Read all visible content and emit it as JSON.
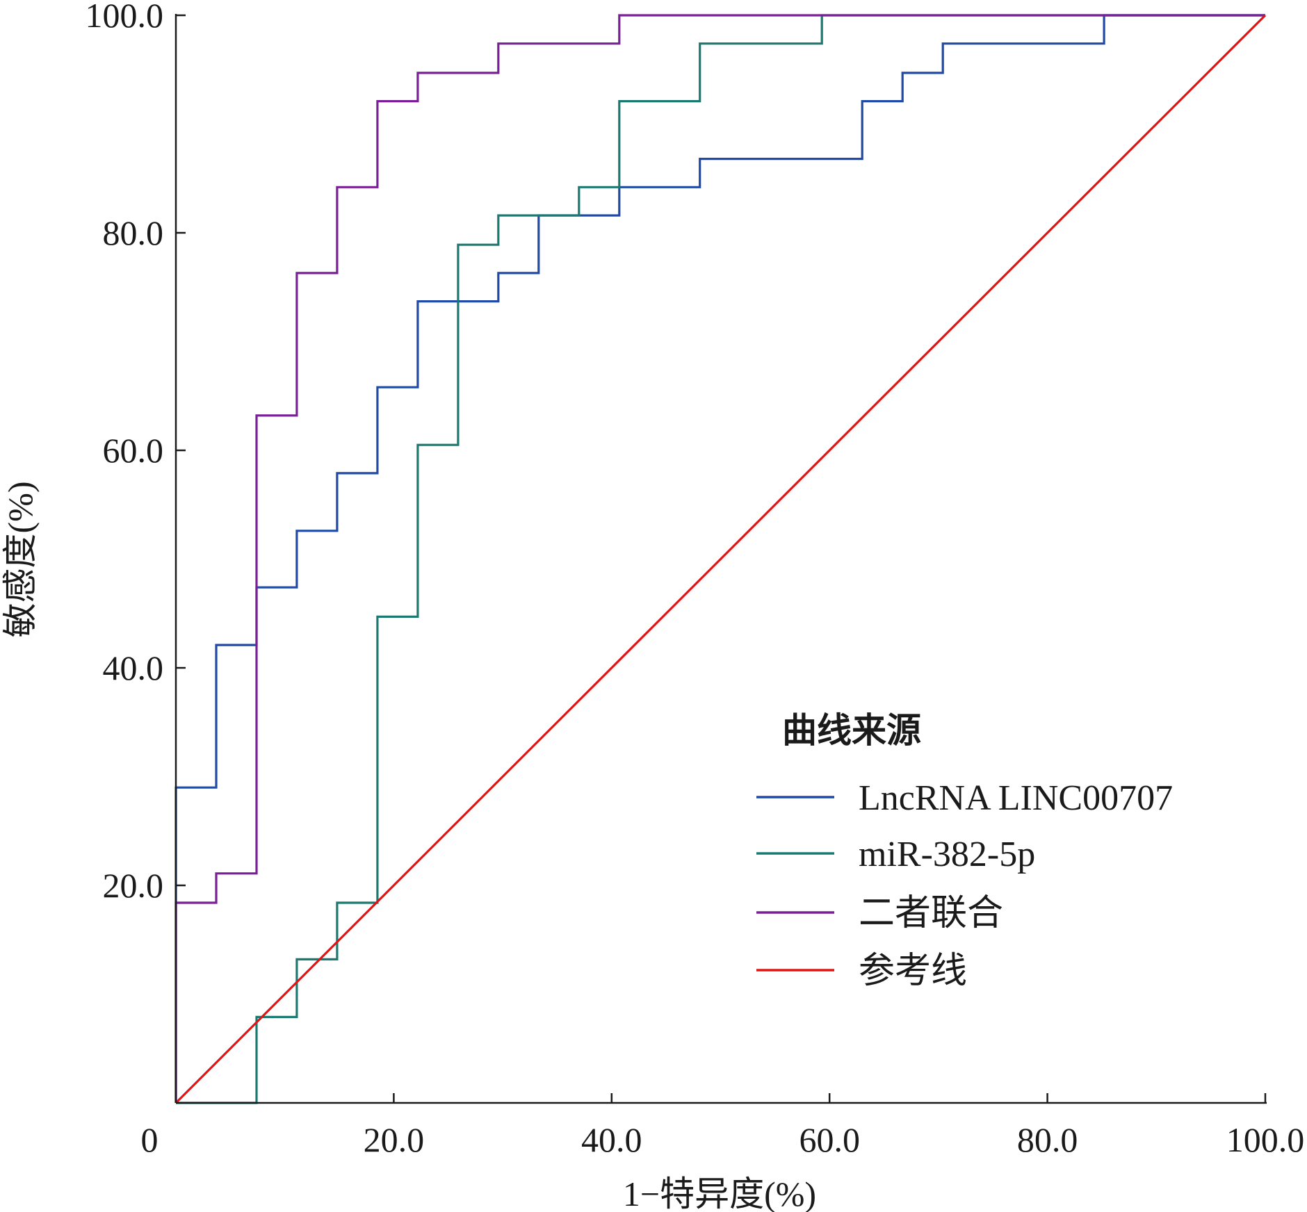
{
  "chart_data": {
    "type": "line",
    "xlabel": "1−特异度(%)",
    "ylabel": "敏感度(%)",
    "xlim": [
      0,
      100
    ],
    "ylim": [
      0,
      100
    ],
    "x_ticks": [
      0,
      20,
      40,
      60,
      80,
      100
    ],
    "x_tick_labels": [
      "0",
      "20.0",
      "40.0",
      "60.0",
      "80.0",
      "100.0"
    ],
    "y_ticks": [
      20,
      40,
      60,
      80,
      100
    ],
    "y_tick_labels": [
      "20.0",
      "40.0",
      "60.0",
      "80.0",
      "100.0"
    ],
    "legend": {
      "title": "曲线来源",
      "position": "lower-right"
    },
    "series": [
      {
        "name": "LncRNA LINC00707",
        "color": "#1f4aa8",
        "step": true,
        "points": [
          [
            0,
            0
          ],
          [
            0,
            29
          ],
          [
            3.7,
            29
          ],
          [
            3.7,
            42.1
          ],
          [
            7.4,
            42.1
          ],
          [
            7.4,
            47.4
          ],
          [
            11.1,
            47.4
          ],
          [
            11.1,
            52.6
          ],
          [
            14.8,
            52.6
          ],
          [
            14.8,
            57.9
          ],
          [
            18.5,
            57.9
          ],
          [
            18.5,
            65.8
          ],
          [
            22.2,
            65.8
          ],
          [
            22.2,
            73.7
          ],
          [
            29.6,
            73.7
          ],
          [
            29.6,
            76.3
          ],
          [
            33.3,
            76.3
          ],
          [
            33.3,
            81.6
          ],
          [
            40.7,
            81.6
          ],
          [
            40.7,
            84.2
          ],
          [
            48.1,
            84.2
          ],
          [
            48.1,
            86.8
          ],
          [
            63,
            86.8
          ],
          [
            63,
            92.1
          ],
          [
            66.7,
            92.1
          ],
          [
            66.7,
            94.7
          ],
          [
            70.4,
            94.7
          ],
          [
            70.4,
            97.4
          ],
          [
            85.2,
            97.4
          ],
          [
            85.2,
            100
          ],
          [
            100,
            100
          ]
        ]
      },
      {
        "name": "miR-382-5p",
        "color": "#1a7a72",
        "step": true,
        "points": [
          [
            0,
            0
          ],
          [
            7.4,
            0
          ],
          [
            7.4,
            7.9
          ],
          [
            11.1,
            7.9
          ],
          [
            11.1,
            13.2
          ],
          [
            14.8,
            13.2
          ],
          [
            14.8,
            18.4
          ],
          [
            18.5,
            18.4
          ],
          [
            18.5,
            44.7
          ],
          [
            22.2,
            44.7
          ],
          [
            22.2,
            60.5
          ],
          [
            25.9,
            60.5
          ],
          [
            25.9,
            78.9
          ],
          [
            29.6,
            78.9
          ],
          [
            29.6,
            81.6
          ],
          [
            37,
            81.6
          ],
          [
            37,
            84.2
          ],
          [
            40.7,
            84.2
          ],
          [
            40.7,
            92.1
          ],
          [
            48.1,
            92.1
          ],
          [
            48.1,
            97.4
          ],
          [
            59.3,
            97.4
          ],
          [
            59.3,
            100
          ],
          [
            100,
            100
          ]
        ]
      },
      {
        "name": "二者联合",
        "color": "#7b1f98",
        "step": true,
        "points": [
          [
            0,
            0
          ],
          [
            0,
            18.4
          ],
          [
            3.7,
            18.4
          ],
          [
            3.7,
            21.1
          ],
          [
            7.4,
            21.1
          ],
          [
            7.4,
            63.2
          ],
          [
            11.1,
            63.2
          ],
          [
            11.1,
            76.3
          ],
          [
            14.8,
            76.3
          ],
          [
            14.8,
            84.2
          ],
          [
            18.5,
            84.2
          ],
          [
            18.5,
            92.1
          ],
          [
            22.2,
            92.1
          ],
          [
            22.2,
            94.7
          ],
          [
            29.6,
            94.7
          ],
          [
            29.6,
            97.4
          ],
          [
            40.7,
            97.4
          ],
          [
            40.7,
            100
          ],
          [
            100,
            100
          ]
        ]
      },
      {
        "name": "参考线",
        "color": "#e01414",
        "step": false,
        "points": [
          [
            0,
            0
          ],
          [
            100,
            100
          ]
        ]
      }
    ]
  }
}
